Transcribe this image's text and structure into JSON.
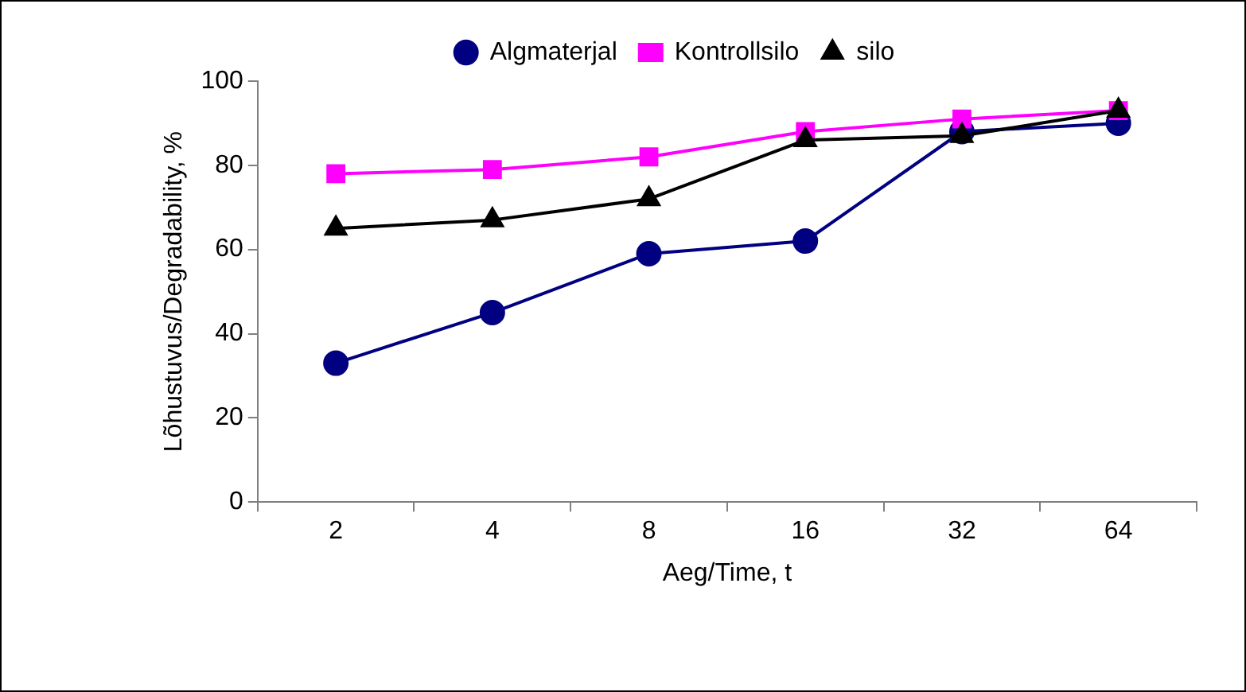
{
  "chart_data": {
    "type": "line",
    "xlabel": "Aeg/Time, t",
    "ylabel": "Lõhustuvus/Degradability, %",
    "categories": [
      "2",
      "4",
      "8",
      "16",
      "32",
      "64"
    ],
    "series": [
      {
        "name": "Algmaterjal",
        "color": "#000080",
        "marker": "circle",
        "values": [
          33,
          45,
          59,
          62,
          88,
          90
        ]
      },
      {
        "name": "Kontrollsilo",
        "color": "#ff00ff",
        "marker": "square",
        "values": [
          78,
          79,
          82,
          88,
          91,
          93
        ]
      },
      {
        "name": "silo",
        "color": "#000000",
        "marker": "triangle",
        "values": [
          65,
          67,
          72,
          86,
          87,
          93
        ]
      }
    ],
    "ylim": [
      0,
      100
    ],
    "yticks": [
      0,
      20,
      40,
      60,
      80,
      100
    ],
    "grid": false,
    "legend": "top"
  }
}
